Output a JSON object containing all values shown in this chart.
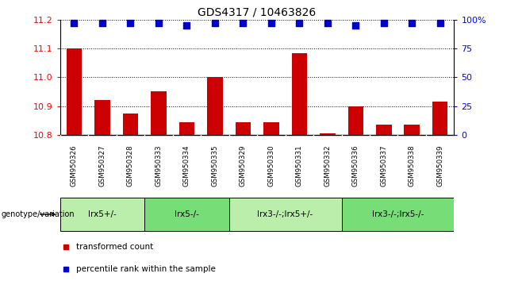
{
  "title": "GDS4317 / 10463826",
  "samples": [
    "GSM950326",
    "GSM950327",
    "GSM950328",
    "GSM950333",
    "GSM950334",
    "GSM950335",
    "GSM950329",
    "GSM950330",
    "GSM950331",
    "GSM950332",
    "GSM950336",
    "GSM950337",
    "GSM950338",
    "GSM950339"
  ],
  "bar_values": [
    11.1,
    10.92,
    10.875,
    10.95,
    10.845,
    11.0,
    10.845,
    10.845,
    11.085,
    10.805,
    10.9,
    10.835,
    10.835,
    10.915
  ],
  "percentile_values": [
    97,
    97,
    97,
    97,
    95,
    97,
    97,
    97,
    97,
    97,
    95,
    97,
    97,
    97
  ],
  "ylim_left": [
    10.8,
    11.2
  ],
  "ylim_right": [
    0,
    100
  ],
  "yticks_left": [
    10.8,
    10.9,
    11.0,
    11.1,
    11.2
  ],
  "yticks_right": [
    0,
    25,
    50,
    75,
    100
  ],
  "ytick_labels_right": [
    "0",
    "25",
    "50",
    "75",
    "100%"
  ],
  "bar_color": "#cc0000",
  "dot_color": "#0000cc",
  "groups": [
    {
      "label": "lrx5+/-",
      "start": 0,
      "end": 3,
      "color": "#bbeeaa"
    },
    {
      "label": "lrx5-/-",
      "start": 3,
      "end": 6,
      "color": "#77dd77"
    },
    {
      "label": "lrx3-/-;lrx5+/-",
      "start": 6,
      "end": 10,
      "color": "#bbeeaa"
    },
    {
      "label": "lrx3-/-;lrx5-/-",
      "start": 10,
      "end": 14,
      "color": "#77dd77"
    }
  ],
  "genotype_label": "genotype/variation",
  "legend_bar_label": "transformed count",
  "legend_dot_label": "percentile rank within the sample",
  "title_fontsize": 10,
  "tick_fontsize": 8,
  "bar_width": 0.55,
  "dot_size": 28,
  "sample_box_color": "#cccccc",
  "sample_box_edge": "#888888"
}
